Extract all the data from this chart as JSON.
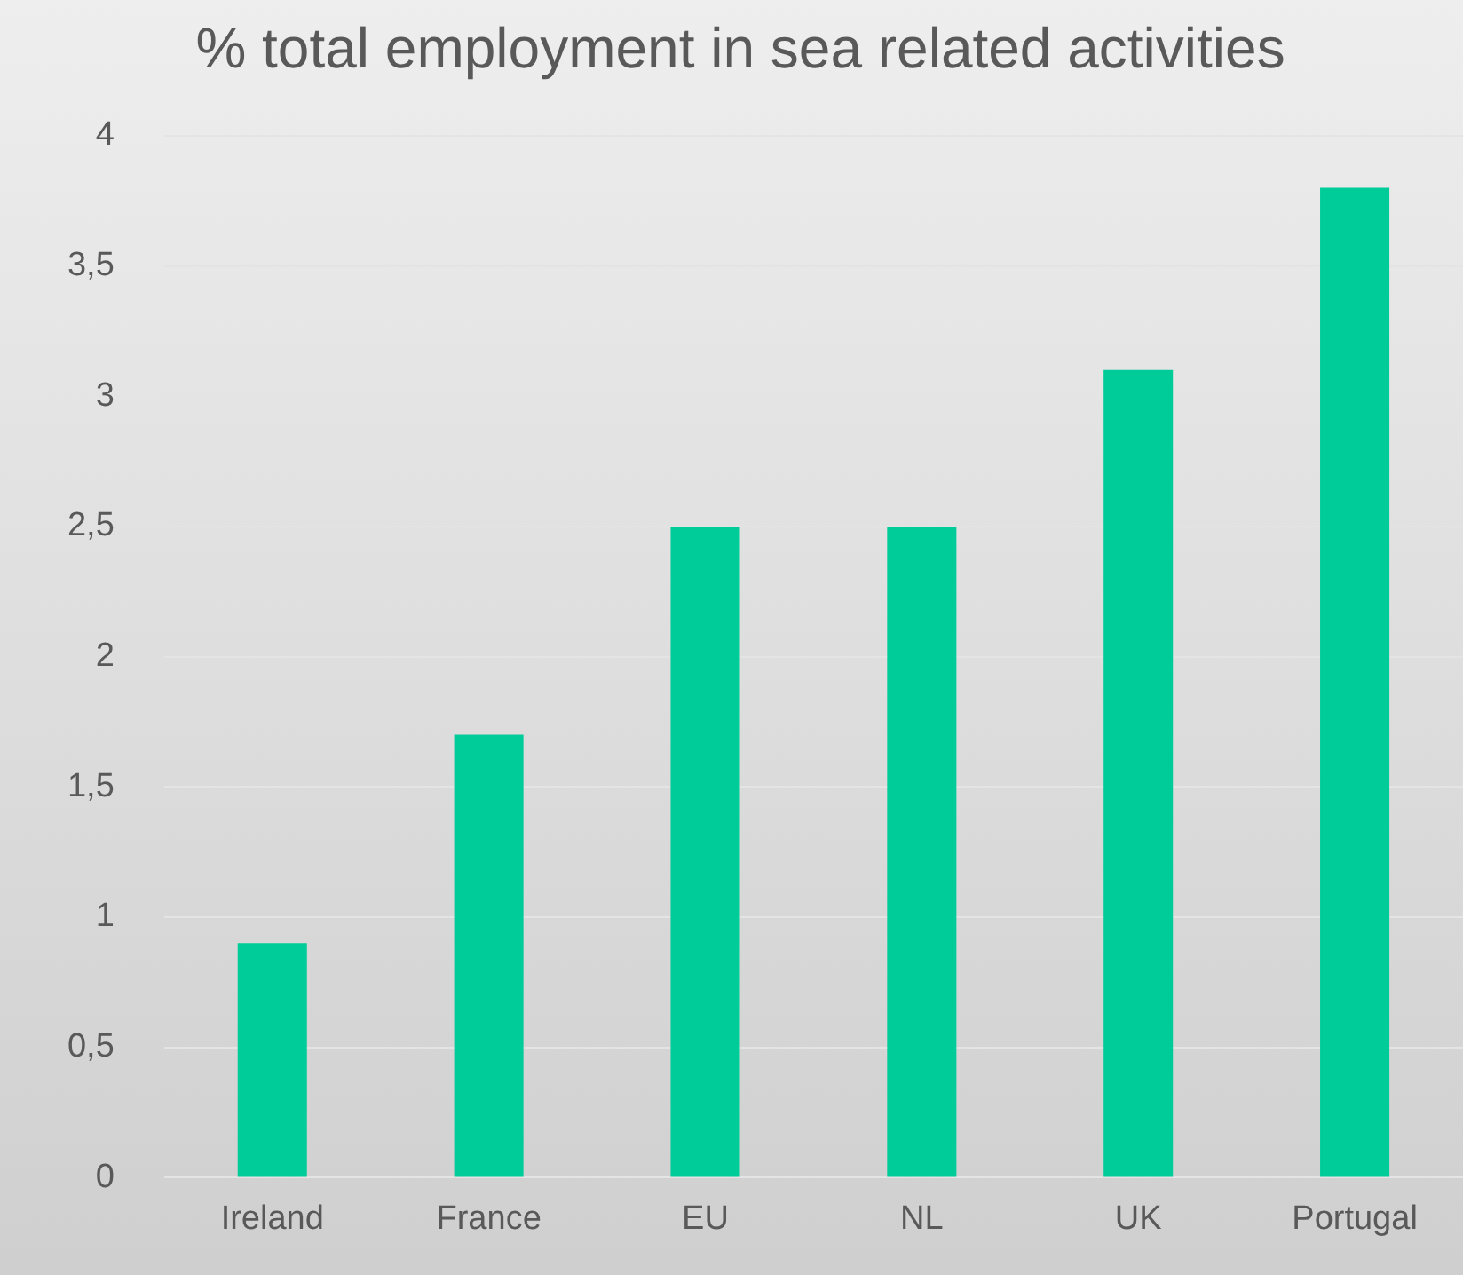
{
  "chart_data": {
    "type": "bar",
    "title": "% total employment in sea related activities",
    "categories": [
      "Ireland",
      "France",
      "EU",
      "NL",
      "UK",
      "Portugal"
    ],
    "values": [
      0.9,
      1.7,
      2.5,
      2.5,
      3.1,
      3.8
    ],
    "color": "#00cc99",
    "ylim": [
      0,
      4
    ],
    "yticks": [
      0,
      {
        "value": 0.5,
        "label": "0,5"
      },
      1,
      {
        "value": 1.5,
        "label": "1,5"
      },
      2,
      {
        "value": 2.5,
        "label": "2,5"
      },
      3,
      {
        "value": 3.5,
        "label": "3,5"
      },
      4
    ],
    "grid": "y",
    "legend": false
  }
}
